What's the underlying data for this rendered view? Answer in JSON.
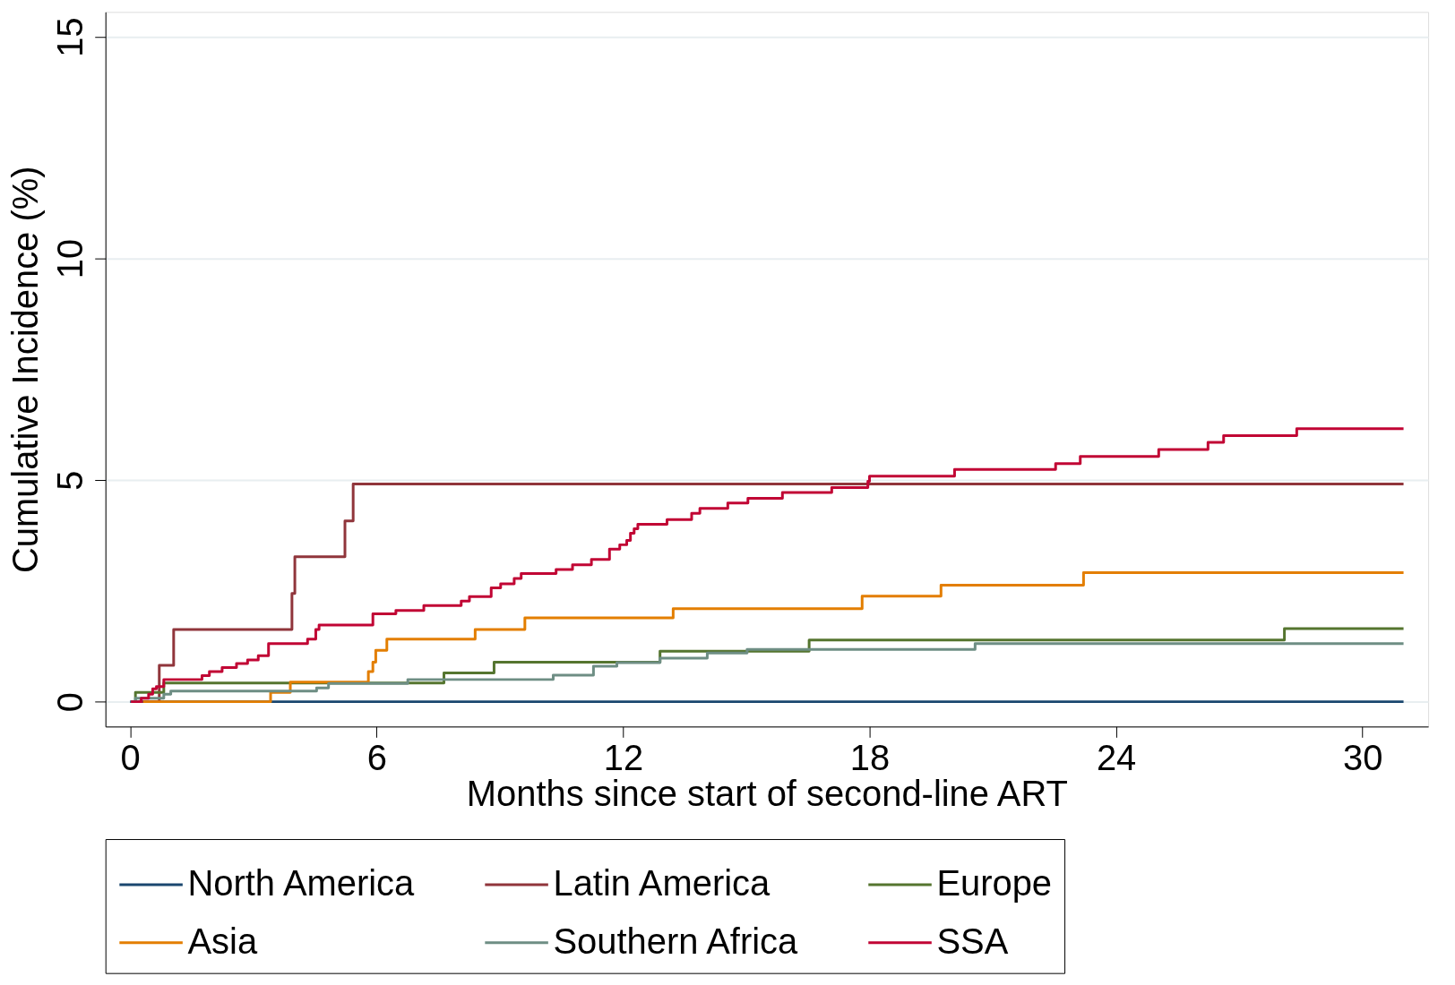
{
  "chart_data": {
    "type": "step",
    "xlabel": "Months since start of second-line ART",
    "ylabel": "Cumulative Incidence (%)",
    "xlim": [
      -0.6,
      31.6
    ],
    "ylim": [
      -0.56,
      15.56
    ],
    "xticks": [
      0,
      6,
      12,
      18,
      24,
      30
    ],
    "yticks": [
      0,
      5,
      10,
      15
    ],
    "grid": "y",
    "legend": "bottom",
    "marker": "none",
    "line_style": "solid",
    "series": [
      {
        "name": "North America",
        "color": "#1a476f",
        "x": [
          0,
          31.0
        ],
        "values": [
          0,
          0
        ]
      },
      {
        "name": "Latin America",
        "color": "#90353b",
        "x": [
          0.2,
          0.71,
          1.06,
          3.94,
          4.01,
          5.23,
          5.43,
          31.0
        ],
        "values": [
          0,
          0.82,
          1.63,
          2.44,
          3.27,
          4.08,
          4.91,
          4.91
        ]
      },
      {
        "name": "Europe",
        "color": "#55752f",
        "x": [
          0.02,
          0.13,
          0.82,
          7.64,
          8.86,
          12.9,
          16.53,
          28.1,
          31.0
        ],
        "values": [
          0,
          0.21,
          0.42,
          0.65,
          0.89,
          1.14,
          1.39,
          1.65,
          1.65
        ]
      },
      {
        "name": "Asia",
        "color": "#e37e00",
        "x": [
          0.32,
          3.42,
          3.9,
          5.8,
          5.91,
          5.98,
          6.25,
          8.4,
          9.61,
          13.22,
          17.82,
          19.74,
          23.21,
          31.0
        ],
        "values": [
          0,
          0.21,
          0.44,
          0.68,
          0.89,
          1.16,
          1.41,
          1.63,
          1.89,
          2.1,
          2.38,
          2.63,
          2.91,
          2.91
        ]
      },
      {
        "name": "Southern Africa",
        "color": "#6e8e84",
        "x": [
          0.02,
          0.13,
          0.82,
          0.99,
          4.54,
          4.83,
          6.76,
          10.3,
          11.28,
          11.85,
          12.9,
          14.05,
          15.02,
          20.57,
          31.0
        ],
        "values": [
          0,
          0.08,
          0.17,
          0.24,
          0.31,
          0.41,
          0.5,
          0.6,
          0.8,
          0.88,
          0.98,
          1.1,
          1.18,
          1.31,
          1.31
        ]
      },
      {
        "name": "SSA",
        "color": "#c10534",
        "x": [
          0.02,
          0.27,
          0.45,
          0.55,
          0.64,
          0.82,
          1.75,
          1.93,
          2.24,
          2.59,
          2.86,
          3.12,
          3.37,
          4.32,
          4.52,
          4.6,
          5.91,
          6.47,
          7.15,
          8.06,
          8.26,
          8.79,
          9.02,
          9.35,
          9.52,
          10.37,
          10.77,
          11.23,
          11.67,
          11.92,
          12.09,
          12.18,
          12.27,
          12.36,
          13.07,
          13.67,
          13.87,
          14.55,
          15.04,
          15.88,
          17.08,
          17.96,
          18.0,
          20.07,
          22.53,
          23.13,
          25.04,
          26.24,
          26.62,
          28.4,
          31.0
        ],
        "values": [
          0,
          0.08,
          0.17,
          0.29,
          0.34,
          0.5,
          0.59,
          0.68,
          0.77,
          0.86,
          0.94,
          1.04,
          1.31,
          1.41,
          1.63,
          1.73,
          1.98,
          2.06,
          2.17,
          2.27,
          2.37,
          2.57,
          2.66,
          2.78,
          2.89,
          2.98,
          3.09,
          3.21,
          3.44,
          3.54,
          3.64,
          3.8,
          3.9,
          4.0,
          4.11,
          4.25,
          4.36,
          4.48,
          4.59,
          4.72,
          4.83,
          4.97,
          5.09,
          5.24,
          5.37,
          5.53,
          5.69,
          5.85,
          6.0,
          6.16,
          6.16
        ]
      }
    ]
  }
}
